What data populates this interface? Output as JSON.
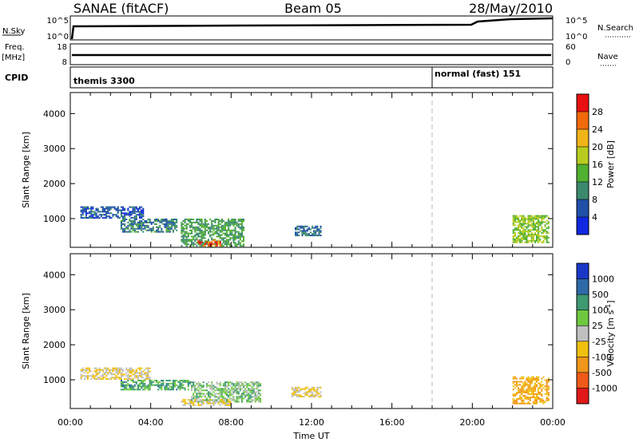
{
  "header": {
    "station": "SANAE (fitACF)",
    "beam": "Beam 05",
    "date": "28/May/2010"
  },
  "panels": {
    "nsky": {
      "left_label": "N.Sky",
      "right_label": "N.Search",
      "left_ticks": [
        "10^5",
        "10^0"
      ],
      "right_ticks": [
        "10^5",
        "10^0"
      ]
    },
    "freq": {
      "left_label": "Freq.",
      "left_unit": "[MHz]",
      "right_label": "Nave",
      "left_ticks": [
        "18",
        "8"
      ],
      "right_ticks": [
        "60",
        "0"
      ]
    },
    "cpid": {
      "label": "CPID",
      "modes": [
        "themis 3300",
        "normal (fast) 151"
      ]
    }
  },
  "axes": {
    "ylabel": "Slant Range [km]",
    "xlabel": "Time UT",
    "yticks": [
      "4000",
      "3000",
      "2000",
      "1000"
    ],
    "xticks": [
      "00:00",
      "04:00",
      "08:00",
      "12:00",
      "16:00",
      "20:00",
      "00:00"
    ]
  },
  "power_scale": {
    "label": "Power [dB]",
    "ticks": [
      "28",
      "24",
      "20",
      "16",
      "12",
      "8",
      "4"
    ],
    "colors": [
      "#e81010",
      "#f26a0c",
      "#f0b418",
      "#b8cc20",
      "#50b030",
      "#3c8a6e",
      "#2050a8",
      "#1028e0"
    ]
  },
  "velocity_scale": {
    "label": "Velocity [m s",
    "label_sup": "-1",
    "label_end": "]",
    "ticks": [
      "1000",
      "500",
      "100",
      "25",
      "-25",
      "-100",
      "-500",
      "-1000"
    ],
    "colors": [
      "#1a38c8",
      "#2e6aa8",
      "#3f9a72",
      "#6ec840",
      "#c0c0c0",
      "#f0c010",
      "#f0961a",
      "#ee5a18",
      "#e01818"
    ]
  },
  "chart_data": [
    {
      "type": "heatmap",
      "title": "Power",
      "xlabel": "Time UT",
      "ylabel": "Slant Range [km]",
      "xlim": [
        "00:00",
        "24:00"
      ],
      "ylim": [
        180,
        4600
      ],
      "colorbar": "Power [dB]",
      "color_range": [
        0,
        32
      ],
      "regions": [
        {
          "t_start": "00:30",
          "t_end": "03:40",
          "range_start": 1000,
          "range_end": 1350,
          "value": 6
        },
        {
          "t_start": "02:30",
          "t_end": "05:20",
          "range_start": 600,
          "range_end": 1000,
          "value": 9
        },
        {
          "t_start": "05:30",
          "t_end": "08:40",
          "range_start": 200,
          "range_end": 1000,
          "value": 12
        },
        {
          "t_start": "06:20",
          "t_end": "07:30",
          "range_start": 200,
          "range_end": 400,
          "value": 26
        },
        {
          "t_start": "11:10",
          "t_end": "12:30",
          "range_start": 500,
          "range_end": 800,
          "value": 8
        },
        {
          "t_start": "22:00",
          "t_end": "23:50",
          "range_start": 300,
          "range_end": 1100,
          "value": 16
        }
      ]
    },
    {
      "type": "heatmap",
      "title": "Velocity",
      "xlabel": "Time UT",
      "ylabel": "Slant Range [km]",
      "xlim": [
        "00:00",
        "24:00"
      ],
      "ylim": [
        180,
        4600
      ],
      "colorbar": "Velocity [m s-1]",
      "color_range": [
        -1000,
        1000
      ],
      "regions": [
        {
          "t_start": "00:30",
          "t_end": "04:00",
          "range_start": 1000,
          "range_end": 1350,
          "value": -100
        },
        {
          "t_start": "02:30",
          "t_end": "06:00",
          "range_start": 700,
          "range_end": 1000,
          "value": 50
        },
        {
          "t_start": "06:00",
          "t_end": "09:30",
          "range_start": 350,
          "range_end": 950,
          "value": 0
        },
        {
          "t_start": "05:30",
          "t_end": "08:00",
          "range_start": 250,
          "range_end": 450,
          "value": -100
        },
        {
          "t_start": "11:00",
          "t_end": "12:30",
          "range_start": 500,
          "range_end": 800,
          "value": -100
        },
        {
          "t_start": "22:00",
          "t_end": "23:50",
          "range_start": 300,
          "range_end": 1100,
          "value": -500
        }
      ]
    }
  ]
}
